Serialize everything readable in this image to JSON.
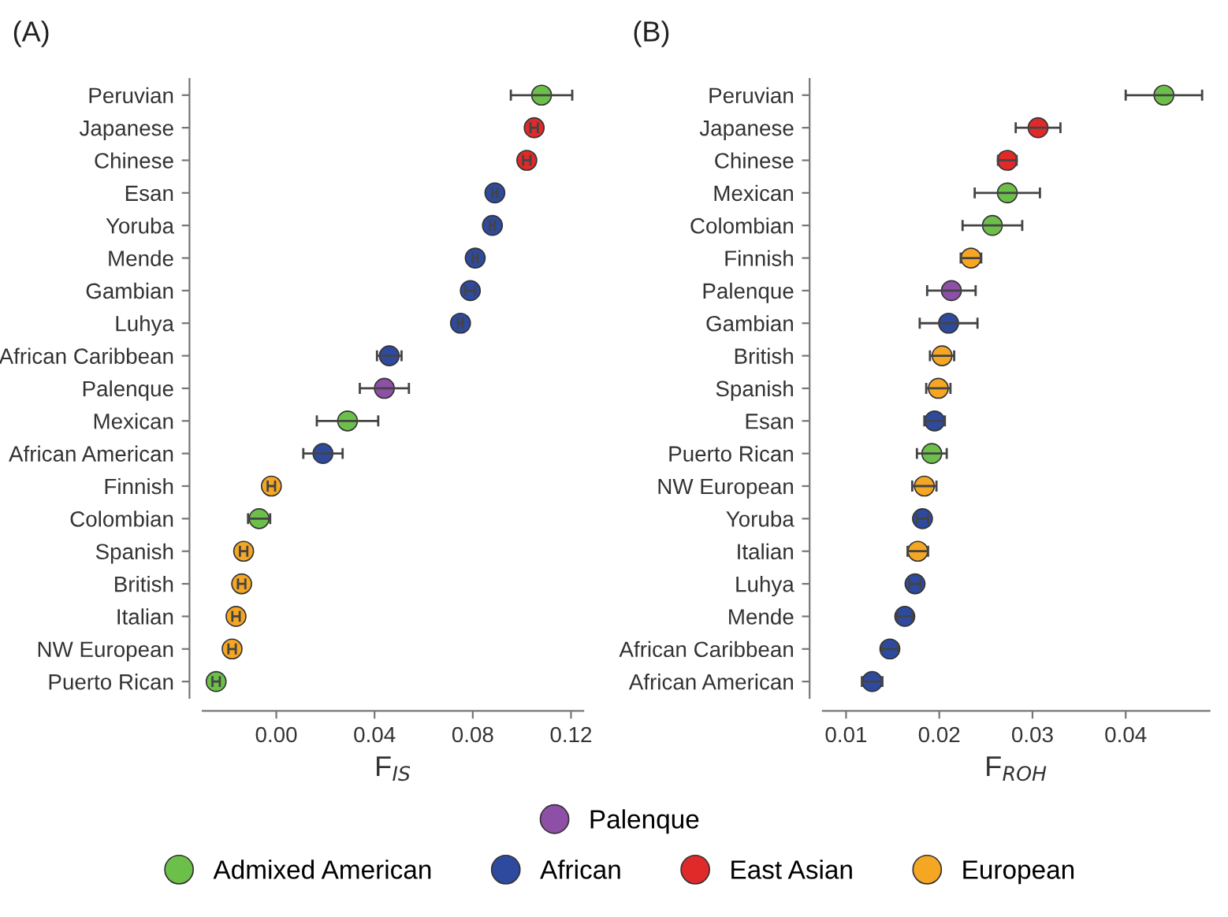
{
  "chart_data": [
    {
      "type": "scatter",
      "title": "(A)",
      "xlabel": "F$_{IS}$",
      "orientation": "horizontal",
      "marker": "circle",
      "grid": false,
      "legend": "bottom",
      "categories": [
        "Peruvian",
        "Japanese",
        "Chinese",
        "Esan",
        "Yoruba",
        "Mende",
        "Gambian",
        "Luhya",
        "African Caribbean",
        "Palenque",
        "Mexican",
        "African American",
        "Finnish",
        "Colombian",
        "Spanish",
        "British",
        "Italian",
        "NW European",
        "Puerto Rican"
      ],
      "xlim": [
        -0.03,
        0.125
      ],
      "xticks": [
        {
          "value": 0,
          "label": "0.00"
        },
        0.04,
        0.08,
        0.12
      ],
      "series": [
        {
          "name": "Admixed American",
          "color": "#6cc04a",
          "values": [
            0.108,
            null,
            null,
            null,
            null,
            null,
            null,
            null,
            null,
            null,
            0.029,
            null,
            null,
            -0.007,
            null,
            null,
            null,
            null,
            -0.0245
          ],
          "errors": [
            0.0125,
            null,
            null,
            null,
            null,
            null,
            null,
            null,
            null,
            null,
            0.0125,
            null,
            null,
            0.0045,
            null,
            null,
            null,
            null,
            0.0015
          ]
        },
        {
          "name": "African",
          "color": "#2e4a9e",
          "values": [
            null,
            null,
            null,
            0.089,
            0.088,
            0.081,
            0.079,
            0.075,
            0.046,
            null,
            null,
            0.019,
            null,
            null,
            null,
            null,
            null,
            null,
            null
          ],
          "errors": [
            null,
            null,
            null,
            0.001,
            0.001,
            0.001,
            0.002,
            0.001,
            0.005,
            null,
            null,
            0.008,
            null,
            null,
            null,
            null,
            null,
            null,
            null
          ]
        },
        {
          "name": "East Asian",
          "color": "#e02a2a",
          "values": [
            null,
            0.105,
            0.102,
            null,
            null,
            null,
            null,
            null,
            null,
            null,
            null,
            null,
            null,
            null,
            null,
            null,
            null,
            null,
            null
          ],
          "errors": [
            null,
            0.0015,
            0.0015,
            null,
            null,
            null,
            null,
            null,
            null,
            null,
            null,
            null,
            null,
            null,
            null,
            null,
            null,
            null,
            null
          ]
        },
        {
          "name": "European",
          "color": "#f5a623",
          "values": [
            null,
            null,
            null,
            null,
            null,
            null,
            null,
            null,
            null,
            null,
            null,
            null,
            -0.002,
            null,
            -0.0133,
            -0.0141,
            -0.0164,
            -0.018,
            null
          ],
          "errors": [
            null,
            null,
            null,
            null,
            null,
            null,
            null,
            null,
            null,
            null,
            null,
            null,
            0.0015,
            null,
            0.0015,
            0.0015,
            0.0015,
            0.0015,
            null
          ]
        },
        {
          "name": "Palenque",
          "color": "#8e4fa6",
          "values": [
            null,
            null,
            null,
            null,
            null,
            null,
            null,
            null,
            null,
            0.044,
            null,
            null,
            null,
            null,
            null,
            null,
            null,
            null,
            null
          ],
          "errors": [
            null,
            null,
            null,
            null,
            null,
            null,
            null,
            null,
            null,
            0.01,
            null,
            null,
            null,
            null,
            null,
            null,
            null,
            null,
            null
          ]
        }
      ]
    },
    {
      "type": "scatter",
      "title": "(B)",
      "xlabel": "F$_{ROH}$",
      "orientation": "horizontal",
      "marker": "circle",
      "grid": false,
      "categories": [
        "Peruvian",
        "Japanese",
        "Chinese",
        "Mexican",
        "Colombian",
        "Finnish",
        "Palenque",
        "Gambian",
        "British",
        "Spanish",
        "Esan",
        "Puerto Rican",
        "NW European",
        "Yoruba",
        "Italian",
        "Luhya",
        "Mende",
        "African Caribbean",
        "African American"
      ],
      "xlim": [
        0.0075,
        0.049
      ],
      "xticks": [
        0.01,
        0.02,
        0.03,
        0.04
      ],
      "series": [
        {
          "color": "#6cc04a",
          "values": [
            0.0441,
            null,
            null,
            0.0273,
            0.0257,
            null,
            null,
            null,
            null,
            null,
            null,
            0.0192,
            null,
            null,
            null,
            null,
            null,
            null,
            null
          ],
          "errors": [
            0.0041,
            null,
            null,
            0.0035,
            0.0032,
            null,
            null,
            null,
            null,
            null,
            null,
            0.0016,
            null,
            null,
            null,
            null,
            null,
            null,
            null
          ]
        },
        {
          "color": "#2e4a9e",
          "values": [
            null,
            null,
            null,
            null,
            null,
            null,
            null,
            0.021,
            null,
            null,
            0.0195,
            null,
            null,
            0.0182,
            null,
            0.0174,
            0.0163,
            0.0147,
            0.0128
          ],
          "errors": [
            null,
            null,
            null,
            null,
            null,
            null,
            null,
            0.0031,
            null,
            null,
            0.0011,
            null,
            null,
            0.0006,
            null,
            0.0006,
            0.0008,
            0.0009,
            0.0011
          ]
        },
        {
          "color": "#e02a2a",
          "values": [
            null,
            0.0306,
            0.0273,
            null,
            null,
            null,
            null,
            null,
            null,
            null,
            null,
            null,
            null,
            null,
            null,
            null,
            null,
            null,
            null
          ],
          "errors": [
            null,
            0.0024,
            0.001,
            null,
            null,
            null,
            null,
            null,
            null,
            null,
            null,
            null,
            null,
            null,
            null,
            null,
            null,
            null,
            null
          ]
        },
        {
          "color": "#f5a623",
          "values": [
            null,
            null,
            null,
            null,
            null,
            0.0234,
            null,
            null,
            0.0203,
            0.0199,
            null,
            null,
            0.0184,
            null,
            0.0177,
            null,
            null,
            null,
            null
          ],
          "errors": [
            null,
            null,
            null,
            null,
            null,
            0.0011,
            null,
            null,
            0.0013,
            0.0013,
            null,
            null,
            0.0013,
            null,
            0.0011,
            null,
            null,
            null,
            null
          ]
        },
        {
          "color": "#8e4fa6",
          "values": [
            null,
            null,
            null,
            null,
            null,
            null,
            0.0213,
            null,
            null,
            null,
            null,
            null,
            null,
            null,
            null,
            null,
            null,
            null,
            null
          ],
          "errors": [
            null,
            null,
            null,
            null,
            null,
            null,
            0.0026,
            null,
            null,
            null,
            null,
            null,
            null,
            null,
            null,
            null,
            null,
            null,
            null
          ]
        }
      ]
    }
  ]
}
